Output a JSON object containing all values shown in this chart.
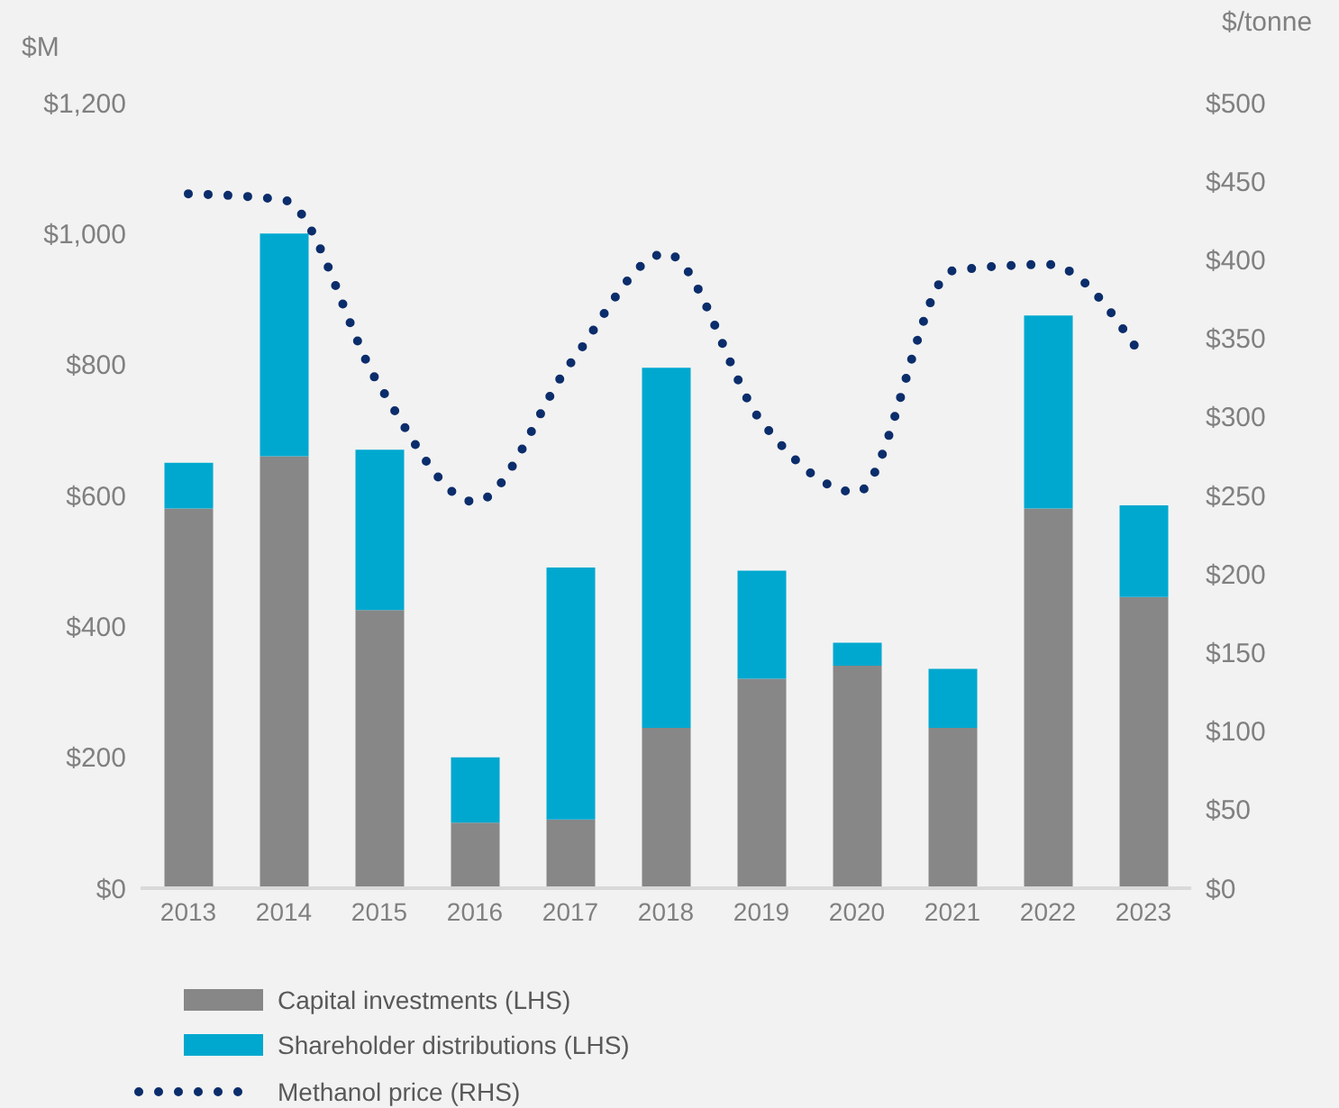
{
  "chart_data": {
    "type": "bar",
    "stacked": true,
    "ylabel": "$M",
    "y2label": "$/tonne",
    "categories": [
      "2013",
      "2014",
      "2015",
      "2016",
      "2017",
      "2018",
      "2019",
      "2020",
      "2021",
      "2022",
      "2023"
    ],
    "series": [
      {
        "name": "Capital investments (LHS)",
        "color": "#878787",
        "values": [
          580,
          660,
          425,
          100,
          105,
          245,
          320,
          340,
          245,
          580,
          445
        ]
      },
      {
        "name": "Shareholder distributions (LHS)",
        "color": "#00a8cf",
        "values": [
          70,
          340,
          245,
          100,
          385,
          550,
          165,
          35,
          90,
          295,
          140
        ]
      },
      {
        "name": "Methanol price (RHS)",
        "type": "line",
        "axis": "y2",
        "line_style": "dotted",
        "color": "#0b2d6b",
        "values": [
          442,
          438,
          320,
          246,
          334,
          404,
          297,
          252,
          393,
          397,
          337
        ]
      }
    ],
    "ylim": [
      0,
      1200
    ],
    "yticks": [
      {
        "value": 0,
        "label": "$0"
      },
      {
        "value": 200,
        "label": "$200"
      },
      {
        "value": 400,
        "label": "$400"
      },
      {
        "value": 600,
        "label": "$600"
      },
      {
        "value": 800,
        "label": "$800"
      },
      {
        "value": 1000,
        "label": "$1,000"
      },
      {
        "value": 1200,
        "label": "$1,200"
      }
    ],
    "y2lim": [
      0,
      500
    ],
    "y2ticks": [
      {
        "value": 0,
        "label": "$0"
      },
      {
        "value": 50,
        "label": "$50"
      },
      {
        "value": 100,
        "label": "$100"
      },
      {
        "value": 150,
        "label": "$150"
      },
      {
        "value": 200,
        "label": "$200"
      },
      {
        "value": 250,
        "label": "$250"
      },
      {
        "value": 300,
        "label": "$300"
      },
      {
        "value": 350,
        "label": "$350"
      },
      {
        "value": 400,
        "label": "$400"
      },
      {
        "value": 450,
        "label": "$450"
      },
      {
        "value": 500,
        "label": "$500"
      }
    ],
    "legend": "bottom left"
  }
}
